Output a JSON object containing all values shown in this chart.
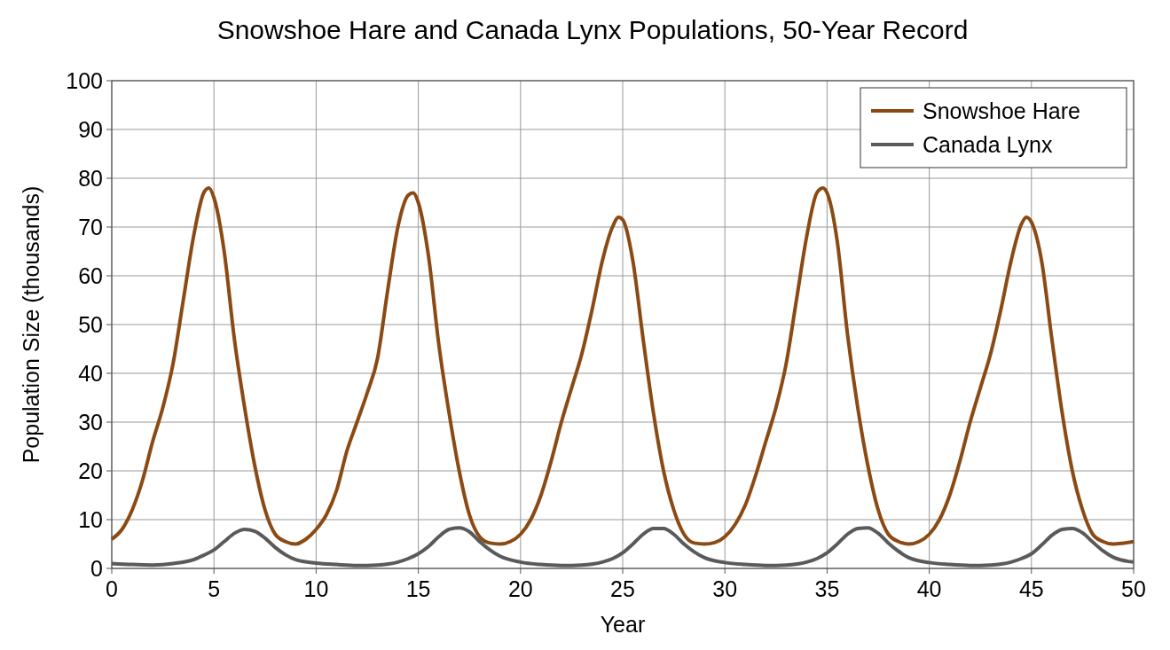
{
  "chart_data": {
    "type": "line",
    "title": "Snowshoe Hare and Canada Lynx Populations, 50-Year Record",
    "xlabel": "Year",
    "ylabel": "Population Size (thousands)",
    "xlim": [
      0,
      50
    ],
    "ylim": [
      0,
      100
    ],
    "xticks": [
      0,
      5,
      10,
      15,
      20,
      25,
      30,
      35,
      40,
      45,
      50
    ],
    "yticks": [
      0,
      10,
      20,
      30,
      40,
      50,
      60,
      70,
      80,
      90,
      100
    ],
    "grid": true,
    "legend": "top right",
    "marker": "none",
    "line_style": "solid",
    "series": [
      {
        "name": "Snowshoe Hare",
        "color": "#8b4a14",
        "x": [
          0,
          0.5,
          1,
          1.5,
          2,
          2.5,
          3,
          3.5,
          4,
          4.5,
          4.75,
          5,
          5.5,
          6,
          6.5,
          7,
          7.5,
          8,
          8.5,
          9,
          9.5,
          10,
          10.5,
          11,
          11.5,
          12,
          12.5,
          13,
          13.5,
          14,
          14.5,
          14.75,
          15,
          15.5,
          16,
          16.5,
          17,
          17.5,
          18,
          18.5,
          19,
          19.5,
          20,
          20.5,
          21,
          21.5,
          22,
          22.5,
          23,
          23.5,
          24,
          24.5,
          24.8,
          25,
          25.5,
          26,
          26.5,
          27,
          27.5,
          28,
          28.5,
          29,
          29.5,
          30,
          30.5,
          31,
          31.5,
          32,
          32.5,
          33,
          33.5,
          34,
          34.5,
          34.8,
          35,
          35.5,
          36,
          36.5,
          37,
          37.5,
          38,
          38.5,
          39,
          39.5,
          40,
          40.5,
          41,
          41.5,
          42,
          42.5,
          43,
          43.5,
          44,
          44.5,
          44.75,
          45,
          45.5,
          46,
          46.5,
          47,
          47.5,
          48,
          48.5,
          49,
          49.5,
          50
        ],
        "values": [
          6,
          8,
          12,
          18,
          26,
          33,
          42,
          55,
          68,
          77,
          78,
          76,
          65,
          47,
          33,
          21,
          12,
          7,
          5.5,
          5,
          6,
          8,
          11,
          16,
          24,
          30,
          36,
          43,
          57,
          70,
          76.5,
          77,
          75,
          64,
          46,
          32,
          20,
          11,
          6.5,
          5.2,
          5,
          5.5,
          7,
          10,
          15,
          22,
          30,
          37,
          44,
          53,
          63,
          70,
          72,
          71.5,
          63,
          47,
          32,
          20,
          12,
          7,
          5.2,
          5,
          5.3,
          6.5,
          9,
          13,
          19,
          26,
          33,
          42,
          55,
          68,
          77,
          78,
          77,
          67,
          48,
          33,
          21,
          12,
          7,
          5.5,
          5,
          5.5,
          7,
          10,
          15,
          22,
          30,
          37,
          44,
          53,
          63,
          70.5,
          72,
          71,
          63,
          47,
          32,
          20,
          12,
          7,
          5.5,
          5,
          5.2,
          5.5
        ]
      },
      {
        "name": "Canada Lynx",
        "color": "#5a5a5a",
        "x": [
          0,
          1,
          2,
          3,
          4,
          4.5,
          5,
          5.5,
          6,
          6.5,
          7,
          7.5,
          8,
          8.5,
          9,
          10,
          11,
          12,
          13,
          14,
          14.5,
          15,
          15.5,
          16,
          16.5,
          17,
          17.5,
          18,
          18.5,
          19,
          20,
          21,
          22,
          23,
          24,
          24.5,
          25,
          25.5,
          26,
          26.5,
          27,
          27.5,
          28,
          28.5,
          29,
          30,
          31,
          32,
          33,
          34,
          34.5,
          35,
          35.5,
          36,
          36.5,
          37,
          37.5,
          38,
          38.5,
          39,
          40,
          41,
          42,
          43,
          44,
          44.5,
          45,
          45.5,
          46,
          46.5,
          47,
          47.5,
          48,
          48.5,
          49,
          50
        ],
        "values": [
          1,
          0.8,
          0.7,
          1,
          1.8,
          2.7,
          3.8,
          5.5,
          7.2,
          8,
          7.6,
          6.2,
          4.3,
          2.8,
          1.8,
          1.1,
          0.8,
          0.6,
          0.7,
          1.3,
          2,
          3,
          4.5,
          6.5,
          8,
          8.3,
          7.5,
          5.5,
          3.8,
          2.5,
          1.3,
          0.8,
          0.6,
          0.7,
          1.3,
          2,
          3.2,
          5,
          7,
          8.2,
          8.2,
          7,
          5,
          3.4,
          2.2,
          1.2,
          0.8,
          0.6,
          0.7,
          1.3,
          2,
          3.2,
          5,
          7,
          8.2,
          8.3,
          7.2,
          5.2,
          3.5,
          2.2,
          1.2,
          0.8,
          0.6,
          0.7,
          1.3,
          2,
          3,
          4.8,
          6.8,
          8,
          8.2,
          7.3,
          5.4,
          3.6,
          2.3,
          1.3
        ]
      }
    ]
  }
}
